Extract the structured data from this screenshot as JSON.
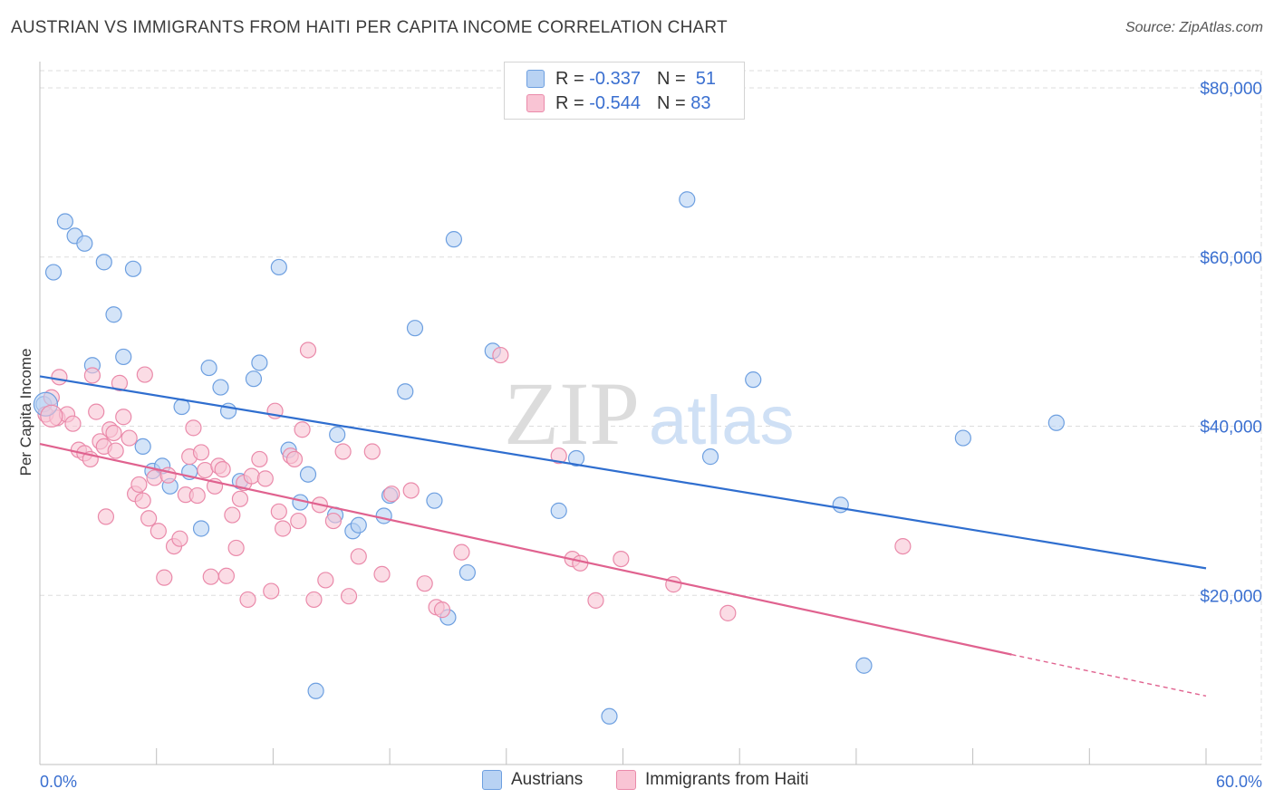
{
  "title": "AUSTRIAN VS IMMIGRANTS FROM HAITI PER CAPITA INCOME CORRELATION CHART",
  "source": "Source: ZipAtlas.com",
  "watermark": {
    "zip": "ZIP",
    "atlas": "atlas"
  },
  "legend": {
    "series1": {
      "r_label": "R =",
      "r_value": "-0.337",
      "n_label": "N =",
      "n_value": "51"
    },
    "series2": {
      "r_label": "R =",
      "r_value": "-0.544",
      "n_label": "N =",
      "n_value": "83"
    }
  },
  "colors": {
    "blue_fill": "#b8d2f3",
    "blue_stroke": "#6d9fe0",
    "blue_line": "#2f6ecf",
    "pink_fill": "#f9c4d4",
    "pink_stroke": "#ea8aaa",
    "pink_line": "#e0628f",
    "tick_label": "#3a6fd0",
    "grid": "#dddddd"
  },
  "chart_data": {
    "type": "scatter",
    "title": "AUSTRIAN VS IMMIGRANTS FROM HAITI PER CAPITA INCOME CORRELATION CHART",
    "xlabel": "",
    "ylabel": "Per Capita Income",
    "xlim": [
      0,
      60
    ],
    "ylim": [
      0,
      80000
    ],
    "x_tick_labels": [
      "0.0%",
      "60.0%"
    ],
    "y_ticks": [
      20000,
      40000,
      60000,
      80000
    ],
    "y_tick_labels": [
      "$20,000",
      "$40,000",
      "$60,000",
      "$80,000"
    ],
    "series": [
      {
        "name": "Austrians",
        "r": -0.337,
        "n": 51,
        "trend": {
          "x": [
            0,
            60
          ],
          "y": [
            45900,
            23200
          ]
        },
        "points": [
          [
            0.2,
            42600
          ],
          [
            0.7,
            58200
          ],
          [
            1.3,
            64200
          ],
          [
            1.8,
            62500
          ],
          [
            2.3,
            61600
          ],
          [
            2.7,
            47200
          ],
          [
            3.3,
            59400
          ],
          [
            3.8,
            53200
          ],
          [
            4.3,
            48200
          ],
          [
            4.8,
            58600
          ],
          [
            5.3,
            37600
          ],
          [
            5.8,
            34700
          ],
          [
            6.3,
            35300
          ],
          [
            6.7,
            32900
          ],
          [
            7.3,
            42300
          ],
          [
            7.7,
            34600
          ],
          [
            8.3,
            27900
          ],
          [
            8.7,
            46900
          ],
          [
            9.3,
            44600
          ],
          [
            9.7,
            41800
          ],
          [
            10.3,
            33500
          ],
          [
            11.0,
            45600
          ],
          [
            11.3,
            47500
          ],
          [
            12.3,
            58800
          ],
          [
            12.8,
            37200
          ],
          [
            13.4,
            31000
          ],
          [
            13.8,
            34300
          ],
          [
            14.2,
            8700
          ],
          [
            15.2,
            29500
          ],
          [
            15.3,
            39000
          ],
          [
            16.1,
            27600
          ],
          [
            16.4,
            28300
          ],
          [
            17.7,
            29400
          ],
          [
            18.0,
            31800
          ],
          [
            18.8,
            44100
          ],
          [
            19.3,
            51600
          ],
          [
            20.3,
            31200
          ],
          [
            21.0,
            17400
          ],
          [
            21.3,
            62100
          ],
          [
            22.0,
            22700
          ],
          [
            23.3,
            48900
          ],
          [
            26.7,
            30000
          ],
          [
            27.6,
            36200
          ],
          [
            29.3,
            5700
          ],
          [
            33.3,
            66800
          ],
          [
            34.5,
            36400
          ],
          [
            36.7,
            45500
          ],
          [
            41.2,
            30700
          ],
          [
            42.4,
            11700
          ],
          [
            47.5,
            38600
          ],
          [
            52.3,
            40400
          ]
        ]
      },
      {
        "name": "Immigrants from Haiti",
        "r": -0.544,
        "n": 83,
        "trend": {
          "x": [
            0,
            50
          ],
          "y": [
            37900,
            13000
          ]
        },
        "trend_dashed": {
          "x": [
            50,
            60
          ],
          "y": [
            13000,
            8100
          ]
        },
        "points": [
          [
            0.3,
            41400
          ],
          [
            0.6,
            43400
          ],
          [
            0.9,
            41000
          ],
          [
            1.0,
            45800
          ],
          [
            1.4,
            41400
          ],
          [
            1.7,
            40300
          ],
          [
            2.0,
            37200
          ],
          [
            2.3,
            36800
          ],
          [
            2.6,
            36100
          ],
          [
            2.7,
            46000
          ],
          [
            2.9,
            41700
          ],
          [
            3.1,
            38200
          ],
          [
            3.3,
            37600
          ],
          [
            3.4,
            29300
          ],
          [
            3.6,
            39600
          ],
          [
            3.8,
            39200
          ],
          [
            3.9,
            37100
          ],
          [
            4.1,
            45100
          ],
          [
            4.3,
            41100
          ],
          [
            4.6,
            38600
          ],
          [
            4.9,
            32000
          ],
          [
            5.1,
            33100
          ],
          [
            5.3,
            31200
          ],
          [
            5.4,
            46100
          ],
          [
            5.6,
            29100
          ],
          [
            5.9,
            33900
          ],
          [
            6.1,
            27600
          ],
          [
            6.4,
            22100
          ],
          [
            6.6,
            34200
          ],
          [
            6.9,
            25800
          ],
          [
            7.2,
            26700
          ],
          [
            7.5,
            31900
          ],
          [
            7.7,
            36400
          ],
          [
            7.9,
            39800
          ],
          [
            8.1,
            31800
          ],
          [
            8.3,
            36900
          ],
          [
            8.5,
            34800
          ],
          [
            8.8,
            22200
          ],
          [
            9.0,
            32900
          ],
          [
            9.2,
            35300
          ],
          [
            9.4,
            34900
          ],
          [
            9.6,
            22300
          ],
          [
            9.9,
            29500
          ],
          [
            10.1,
            25600
          ],
          [
            10.3,
            31400
          ],
          [
            10.5,
            33300
          ],
          [
            10.7,
            19500
          ],
          [
            10.9,
            34100
          ],
          [
            11.3,
            36100
          ],
          [
            11.6,
            33800
          ],
          [
            11.9,
            20500
          ],
          [
            12.1,
            41800
          ],
          [
            12.3,
            29900
          ],
          [
            12.5,
            27900
          ],
          [
            12.9,
            36500
          ],
          [
            13.1,
            36100
          ],
          [
            13.3,
            28800
          ],
          [
            13.5,
            39600
          ],
          [
            13.8,
            49000
          ],
          [
            14.1,
            19500
          ],
          [
            14.4,
            30700
          ],
          [
            14.7,
            21800
          ],
          [
            15.1,
            28800
          ],
          [
            15.6,
            37000
          ],
          [
            15.9,
            19900
          ],
          [
            16.4,
            24600
          ],
          [
            17.1,
            37000
          ],
          [
            17.6,
            22500
          ],
          [
            18.1,
            32000
          ],
          [
            19.1,
            32400
          ],
          [
            19.8,
            21400
          ],
          [
            20.4,
            18600
          ],
          [
            20.7,
            18300
          ],
          [
            21.7,
            25100
          ],
          [
            23.7,
            48400
          ],
          [
            26.7,
            36500
          ],
          [
            27.4,
            24300
          ],
          [
            27.8,
            23800
          ],
          [
            28.6,
            19400
          ],
          [
            29.9,
            24300
          ],
          [
            32.6,
            21300
          ],
          [
            35.4,
            17900
          ],
          [
            44.4,
            25800
          ]
        ]
      }
    ]
  },
  "bottom_legend": {
    "series1": "Austrians",
    "series2": "Immigrants from Haiti"
  }
}
